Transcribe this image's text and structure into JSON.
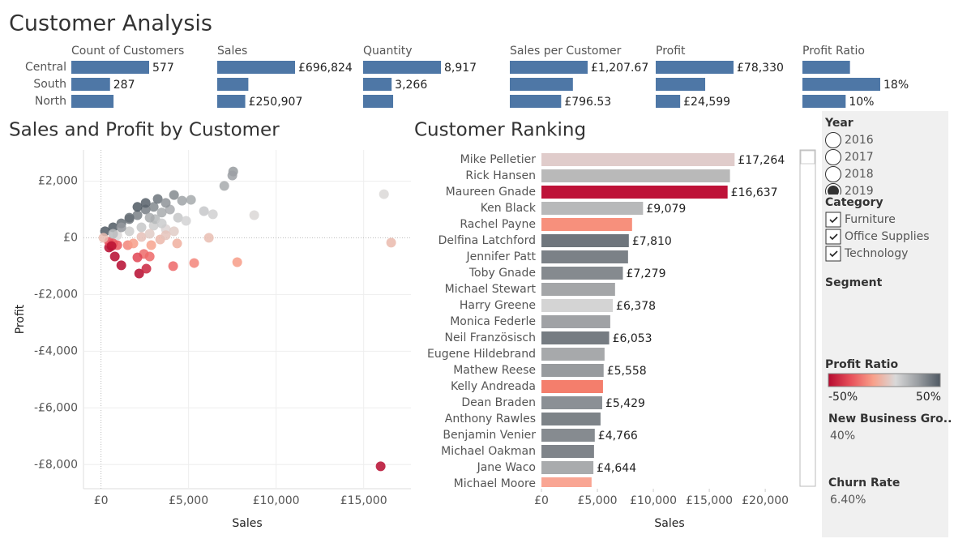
{
  "title": "Customer Analysis",
  "chart_data": [
    {
      "type": "bar",
      "orientation": "horizontal",
      "color": "#4e77a6",
      "categories": [
        "Central",
        "South",
        "North"
      ],
      "series": [
        {
          "name": "Count of Customers",
          "values": [
            577,
            287,
            313
          ],
          "value_labels": [
            "577",
            "287",
            null
          ]
        },
        {
          "name": "Sales",
          "values": [
            696824,
            278600,
            250907
          ],
          "value_labels": [
            "£696,824",
            null,
            "£250,907"
          ]
        },
        {
          "name": "Quantity",
          "values": [
            8917,
            3266,
            3440
          ],
          "value_labels": [
            "8,917",
            "3,266",
            null
          ]
        },
        {
          "name": "Sales per Customer",
          "values": [
            1207.67,
            979,
            796.53
          ],
          "value_labels": [
            "£1,207.67",
            null,
            "£796.53"
          ]
        },
        {
          "name": "Profit",
          "values": [
            78330,
            49800,
            24599
          ],
          "value_labels": [
            "£78,330",
            null,
            "£24,599"
          ]
        },
        {
          "name": "Profit Ratio",
          "values": [
            11,
            18,
            10
          ],
          "value_labels": [
            null,
            "18%",
            "10%"
          ]
        }
      ]
    },
    {
      "type": "scatter",
      "title": "Sales and Profit by Customer",
      "x_label": "Sales",
      "y_label": "Profit",
      "x": [
        16160,
        16570,
        15970,
        8750,
        7550,
        7500,
        7040,
        6160,
        6390,
        5880,
        5140,
        4350,
        5320,
        7780,
        4120,
        2180,
        2590,
        1160,
        2780,
        2450,
        2080,
        790,
        2870,
        460,
        230,
        690,
        1160,
        1620,
        2080,
        2550,
        3010,
        3470,
        3940,
        4400,
        4860,
        930,
        1620,
        2310,
        3010,
        3700,
        4170,
        460,
        2550,
        2080,
        3240,
        3700,
        4630,
        4170,
        1620,
        1160,
        690,
        140,
        3380,
        3700,
        2310,
        2780,
        3100,
        2780,
        3470,
        690,
        930,
        1530,
        1850,
        600
      ],
      "values": [
        1540,
        -170,
        -8060,
        800,
        2340,
        2200,
        1830,
        0,
        830,
        940,
        1340,
        -200,
        -890,
        -860,
        -1000,
        -1260,
        -1090,
        -970,
        -660,
        -570,
        -690,
        -660,
        -260,
        -340,
        230,
        370,
        510,
        660,
        800,
        1000,
        1090,
        890,
        1000,
        710,
        600,
        90,
        230,
        370,
        430,
        310,
        230,
        -140,
        1230,
        1090,
        1370,
        1230,
        1310,
        1510,
        710,
        370,
        140,
        0,
        -60,
        90,
        30,
        140,
        660,
        710,
        510,
        -200,
        -260,
        -260,
        -200,
        -290
      ],
      "xlim": [
        -1000,
        17700
      ],
      "ylim": [
        -8850,
        3100
      ],
      "xticks": [
        {
          "value": 0,
          "label": "£0"
        },
        {
          "value": 5000,
          "label": "£5,000"
        },
        {
          "value": 10000,
          "label": "£10,000"
        },
        {
          "value": 15000,
          "label": "£15,000"
        }
      ],
      "yticks": [
        {
          "value": 2000,
          "label": "£2,000"
        },
        {
          "value": 0,
          "label": "£0"
        },
        {
          "value": -2000,
          "label": "-£2,000"
        },
        {
          "value": -4000,
          "label": "-£4,000"
        },
        {
          "value": -6000,
          "label": "-£6,000"
        },
        {
          "value": -8000,
          "label": "-£8,000"
        }
      ],
      "grid": true
    },
    {
      "type": "bar",
      "orientation": "horizontal",
      "title": "Customer Ranking",
      "x_label": "Sales",
      "categories": [
        "Mike Pelletier",
        "Rick Hansen",
        "Maureen Gnade",
        "Ken Black",
        "Rachel Payne",
        "Delfina Latchford",
        "Jennifer Patt",
        "Toby Gnade",
        "Michael Stewart",
        "Harry Greene",
        "Monica Federle",
        "Neil Französisch",
        "Eugene Hildebrand",
        "Mathew Reese",
        "Kelly Andreada",
        "Dean Braden",
        "Anthony Rawles",
        "Benjamin Venier",
        "Michael Oakman",
        "Jane Waco",
        "Michael Moore"
      ],
      "values": [
        17264,
        16850,
        16637,
        9079,
        8100,
        7810,
        7740,
        7279,
        6580,
        6378,
        6150,
        6053,
        5640,
        5558,
        5500,
        5429,
        5280,
        4766,
        4700,
        4644,
        4480
      ],
      "value_labels": [
        "£17,264",
        null,
        "£16,637",
        "£9,079",
        null,
        "£7,810",
        null,
        "£7,279",
        null,
        "£6,378",
        null,
        "£6,053",
        null,
        "£5,558",
        null,
        "£5,429",
        null,
        "£4,766",
        null,
        "£4,644",
        null
      ],
      "colors": [
        "#e0cccb",
        "#b9b9b9",
        "#be1238",
        "#b8b9ba",
        "#f7907c",
        "#6f767d",
        "#7b8187",
        "#858a8f",
        "#a4a6a8",
        "#d4d4d4",
        "#a0a2a5",
        "#767c82",
        "#a7a9ab",
        "#989b9e",
        "#f47e6c",
        "#8b9095",
        "#7d8388",
        "#868b90",
        "#7f848a",
        "#a9abad",
        "#f9a593"
      ],
      "xlim": [
        0,
        22600
      ],
      "xticks": [
        {
          "value": 0,
          "label": "£0"
        },
        {
          "value": 5000,
          "label": "£5,000"
        },
        {
          "value": 10000,
          "label": "£10,000"
        },
        {
          "value": 15000,
          "label": "£15,000"
        },
        {
          "value": 20000,
          "label": "£20,000"
        }
      ]
    }
  ],
  "filters": {
    "year": {
      "label": "Year",
      "options": [
        "2016",
        "2017",
        "2018",
        "2019"
      ],
      "selected": 3
    },
    "category": {
      "label": "Category",
      "options": [
        "Furniture",
        "Office Supplies",
        "Technology"
      ]
    },
    "segment": {
      "label": "Segment"
    }
  },
  "legend": {
    "title": "Profit Ratio",
    "min": {
      "value": -50,
      "label": "-50%"
    },
    "max": {
      "value": 50,
      "label": "50%"
    },
    "colors": [
      "#b60a2f",
      "#e8505a",
      "#f8a08a",
      "#d9d9d9",
      "#9a9ea2",
      "#4f5963"
    ]
  },
  "kpis": [
    {
      "label": "New Business Gro..",
      "value": "40%"
    },
    {
      "label": "Churn Rate",
      "value": "6.40%"
    }
  ]
}
